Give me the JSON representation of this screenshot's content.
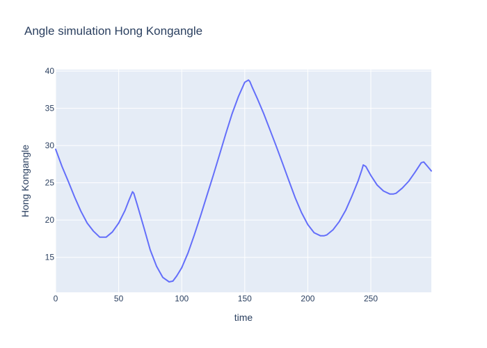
{
  "chart_data": {
    "type": "line",
    "title": "Angle simulation Hong Kongangle",
    "xlabel": "time",
    "ylabel": "Hong Kongangle",
    "xlim": [
      0,
      298
    ],
    "ylim": [
      10.3,
      40.2
    ],
    "xticks": [
      0,
      50,
      100,
      150,
      200,
      250
    ],
    "yticks": [
      15,
      20,
      25,
      30,
      35,
      40
    ],
    "grid": true,
    "legend": "none",
    "colors": {
      "line": "#636efa",
      "plot_bg": "#e5ecf6",
      "grid": "#ffffff",
      "text": "#2a3f5f"
    },
    "series": [
      {
        "x": [
          0,
          5,
          10,
          15,
          20,
          25,
          30,
          35,
          40,
          45,
          50,
          55,
          58,
          61,
          62,
          65,
          70,
          75,
          80,
          85,
          90,
          93,
          96,
          100,
          105,
          110,
          115,
          120,
          125,
          130,
          135,
          140,
          145,
          150,
          153,
          154,
          156,
          160,
          165,
          170,
          175,
          180,
          185,
          190,
          195,
          200,
          205,
          210,
          213,
          215,
          220,
          225,
          230,
          235,
          240,
          243,
          244,
          246,
          250,
          255,
          260,
          265,
          268,
          270,
          275,
          280,
          285,
          290,
          292,
          293,
          295,
          298
        ],
        "y": [
          29.5,
          27.2,
          25.2,
          23.1,
          21.2,
          19.6,
          18.5,
          17.7,
          17.7,
          18.4,
          19.6,
          21.3,
          22.6,
          23.8,
          23.6,
          21.9,
          19.0,
          16.0,
          13.8,
          12.3,
          11.7,
          11.8,
          12.5,
          13.6,
          15.6,
          18.0,
          20.6,
          23.3,
          26.0,
          28.8,
          31.6,
          34.3,
          36.6,
          38.5,
          38.8,
          38.6,
          37.8,
          36.3,
          34.3,
          32.1,
          29.9,
          27.6,
          25.3,
          23.0,
          21.0,
          19.4,
          18.3,
          17.9,
          17.9,
          18.0,
          18.7,
          19.8,
          21.3,
          23.2,
          25.3,
          26.8,
          27.4,
          27.2,
          26.0,
          24.7,
          23.9,
          23.5,
          23.5,
          23.6,
          24.3,
          25.2,
          26.4,
          27.7,
          27.8,
          27.6,
          27.2,
          26.6
        ]
      }
    ]
  }
}
